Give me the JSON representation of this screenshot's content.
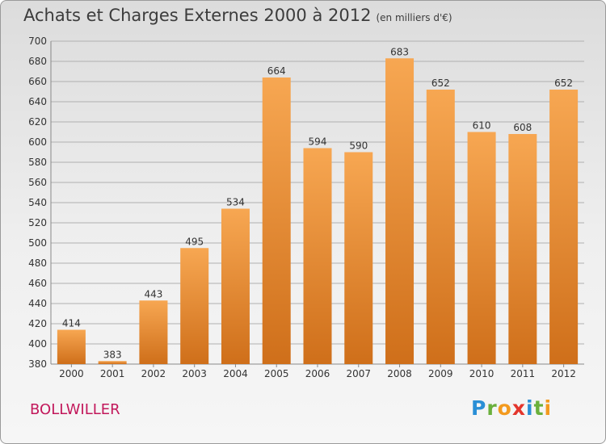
{
  "title": "Achats et Charges Externes 2000 à 2012",
  "subtitle": "(en milliers d'€)",
  "city": "BOLLWILLER",
  "logo": {
    "letters": [
      "P",
      "r",
      "o",
      "x",
      "i",
      "t",
      "i"
    ],
    "colors": [
      "#2a8fd6",
      "#6ab03c",
      "#f39a1e",
      "#e3352c",
      "#2a8fd6",
      "#6ab03c",
      "#f39a1e"
    ]
  },
  "colors": {
    "bar_light": "#f7a752",
    "bar_dark": "#cf6f1a",
    "grid": "#b0b0b0",
    "axis_text": "#333333",
    "city": "#c2185b"
  },
  "chart_data": {
    "type": "bar",
    "categories": [
      "2000",
      "2001",
      "2002",
      "2003",
      "2004",
      "2005",
      "2006",
      "2007",
      "2008",
      "2009",
      "2010",
      "2011",
      "2012"
    ],
    "values": [
      414,
      383,
      443,
      495,
      534,
      664,
      594,
      590,
      683,
      652,
      610,
      608,
      652
    ],
    "ylim": [
      380,
      700
    ],
    "yticks": [
      380,
      400,
      420,
      440,
      460,
      480,
      500,
      520,
      540,
      560,
      580,
      600,
      620,
      640,
      660,
      680,
      700
    ],
    "grid": true
  }
}
